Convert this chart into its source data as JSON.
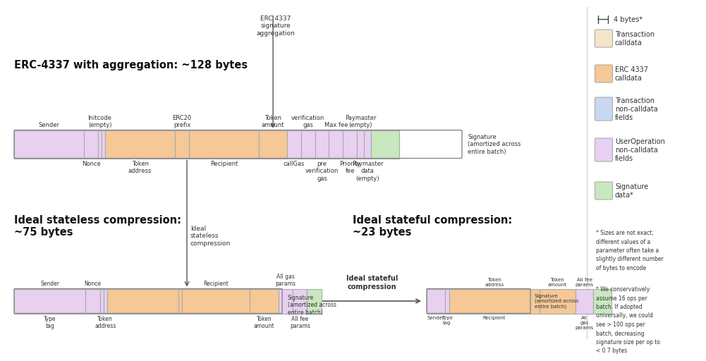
{
  "colors": {
    "tx_calldata": "#f5e6c8",
    "erc4337_calldata": "#f5c896",
    "tx_noncalldata": "#c8d8f0",
    "userop_noncalldata": "#e8d0f0",
    "signature": "#c8e8c0",
    "bg": "#ffffff"
  },
  "erc4337_title": "ERC-4337 with aggregation: ~128 bytes",
  "stateless_title": "Ideal stateless compression:\n~75 bytes",
  "stateful_title": "Ideal stateful compression:\n~23 bytes",
  "erc4337_annotation": "ERC 4337\nsignature\naggregation",
  "stateless_annotation": "Ideal\nstateless\ncompression",
  "stateful_annotation": "Ideal stateful\ncompression",
  "scale_label": "4 bytes*",
  "footnote1": "* Sizes are not exact;\ndifferent values of a\nparameter often take a\nslightly different number\nof bytes to encode",
  "footnote2": "* We conservatively\nassume 16 ops per\nbatch. If adopted\nuniversally, we could\nsee > 100 ops per\nbatch, decreasing\nsignature size per op to\n< 0.7 bytes"
}
